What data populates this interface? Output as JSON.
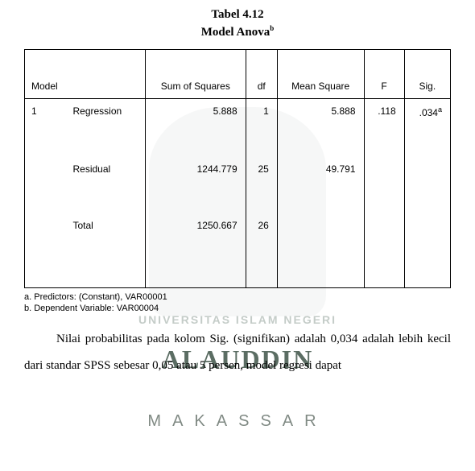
{
  "title": {
    "line1": "Tabel 4.12",
    "line2": "Model Anova",
    "sup": "b"
  },
  "table": {
    "headers": {
      "model": "Model",
      "sos": "Sum of Squares",
      "df": "df",
      "ms": "Mean Square",
      "f": "F",
      "sig": "Sig."
    },
    "rows": [
      {
        "model_no": "1",
        "label": "Regression",
        "sos": "5.888",
        "df": "1",
        "ms": "5.888",
        "f": ".118",
        "sig": ".034",
        "sig_sup": "a"
      },
      {
        "model_no": "",
        "label": "Residual",
        "sos": "1244.779",
        "df": "25",
        "ms": "49.791",
        "f": "",
        "sig": ""
      },
      {
        "model_no": "",
        "label": "Total",
        "sos": "1250.667",
        "df": "26",
        "ms": "",
        "f": "",
        "sig": ""
      }
    ]
  },
  "footnotes": {
    "a": "a. Predictors: (Constant), VAR00001",
    "b": "b. Dependent Variable: VAR00004"
  },
  "paragraph": "Nilai probabilitas pada kolom Sig. (signifikan) adalah 0,034 adalah lebih kecil dari standar SPSS sebesar 0,05 atau  5 persen, model regresi dapat",
  "watermark": {
    "line1": "UNIVERSITAS ISLAM NEGERI",
    "line2": "ALAUDDIN",
    "line3": "MAKASSAR"
  },
  "colors": {
    "text": "#000000",
    "bg": "#ffffff",
    "wm_light": "#c4ccc8",
    "wm_dark": "#5b6d63",
    "wm_mid": "#808a84"
  }
}
